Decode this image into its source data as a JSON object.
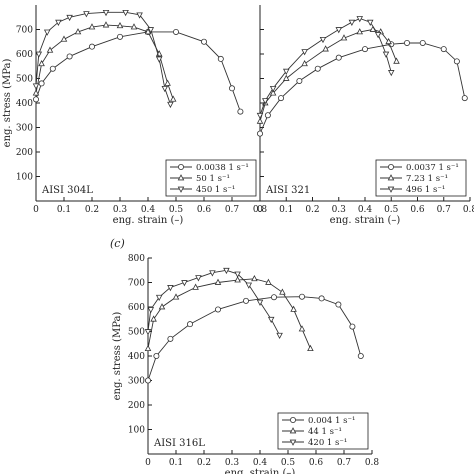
{
  "panel_label_c": "(c)",
  "chart_data": [
    {
      "type": "line",
      "annotation": "AISI 304L",
      "xlabel": "eng. strain (–)",
      "ylabel": "eng. stress (MPa)",
      "xlim": [
        0,
        0.8
      ],
      "ylim": [
        0,
        800
      ],
      "x_ticks": [
        "0",
        "0.1",
        "0.2",
        "0.3",
        "0.4",
        "0.5",
        "0.6",
        "0.7",
        "0.8"
      ],
      "y_ticks": [
        "100",
        "200",
        "300",
        "400",
        "500",
        "600",
        "700"
      ],
      "legend_position": "bottom-right",
      "series": [
        {
          "name": "0.0038 1 s⁻¹",
          "marker": "circle",
          "points": [
            [
              0,
              415
            ],
            [
              0.02,
              480
            ],
            [
              0.06,
              540
            ],
            [
              0.12,
              590
            ],
            [
              0.2,
              630
            ],
            [
              0.3,
              670
            ],
            [
              0.4,
              690
            ],
            [
              0.5,
              690
            ],
            [
              0.6,
              650
            ],
            [
              0.66,
              580
            ],
            [
              0.7,
              460
            ],
            [
              0.73,
              365
            ]
          ]
        },
        {
          "name": "50 1 s⁻¹",
          "marker": "triangle-up",
          "points": [
            [
              0,
              440
            ],
            [
              0.02,
              560
            ],
            [
              0.05,
              615
            ],
            [
              0.1,
              660
            ],
            [
              0.15,
              690
            ],
            [
              0.2,
              710
            ],
            [
              0.25,
              718
            ],
            [
              0.3,
              715
            ],
            [
              0.35,
              710
            ],
            [
              0.4,
              690
            ],
            [
              0.44,
              600
            ],
            [
              0.47,
              480
            ],
            [
              0.49,
              415
            ]
          ]
        },
        {
          "name": "450 1 s⁻¹",
          "marker": "triangle-down",
          "points": [
            [
              0,
              470
            ],
            [
              0.01,
              600
            ],
            [
              0.04,
              690
            ],
            [
              0.08,
              730
            ],
            [
              0.12,
              750
            ],
            [
              0.18,
              765
            ],
            [
              0.25,
              770
            ],
            [
              0.32,
              770
            ],
            [
              0.37,
              760
            ],
            [
              0.41,
              700
            ],
            [
              0.44,
              580
            ],
            [
              0.46,
              460
            ],
            [
              0.48,
              395
            ]
          ]
        }
      ]
    },
    {
      "type": "line",
      "annotation": "AISI 321",
      "xlabel": "eng. strain (–)",
      "ylabel": "",
      "xlim": [
        0,
        0.8
      ],
      "ylim": [
        0,
        800
      ],
      "x_ticks": [
        "0",
        "0.1",
        "0.2",
        "0.3",
        "0.4",
        "0.5",
        "0.6",
        "0.7",
        "0.8"
      ],
      "y_ticks": [],
      "legend_position": "bottom-right",
      "series": [
        {
          "name": "0.0037 1 s⁻¹",
          "marker": "circle",
          "points": [
            [
              0,
              275
            ],
            [
              0.03,
              350
            ],
            [
              0.08,
              420
            ],
            [
              0.15,
              490
            ],
            [
              0.22,
              540
            ],
            [
              0.3,
              585
            ],
            [
              0.4,
              620
            ],
            [
              0.5,
              640
            ],
            [
              0.56,
              645
            ],
            [
              0.62,
              645
            ],
            [
              0.7,
              620
            ],
            [
              0.75,
              570
            ],
            [
              0.78,
              420
            ]
          ]
        },
        {
          "name": "7.23 1 s⁻¹",
          "marker": "triangle-up",
          "points": [
            [
              0,
              325
            ],
            [
              0.02,
              400
            ],
            [
              0.05,
              440
            ],
            [
              0.1,
              500
            ],
            [
              0.17,
              560
            ],
            [
              0.25,
              620
            ],
            [
              0.32,
              665
            ],
            [
              0.38,
              690
            ],
            [
              0.43,
              700
            ],
            [
              0.46,
              690
            ],
            [
              0.49,
              650
            ],
            [
              0.52,
              570
            ]
          ]
        },
        {
          "name": "496 1 s⁻¹",
          "marker": "triangle-down",
          "points": [
            [
              0,
              350
            ],
            [
              0.02,
              410
            ],
            [
              0.05,
              460
            ],
            [
              0.1,
              530
            ],
            [
              0.17,
              610
            ],
            [
              0.24,
              660
            ],
            [
              0.3,
              700
            ],
            [
              0.35,
              730
            ],
            [
              0.38,
              745
            ],
            [
              0.42,
              730
            ],
            [
              0.45,
              680
            ],
            [
              0.48,
              600
            ],
            [
              0.5,
              525
            ]
          ]
        }
      ]
    },
    {
      "type": "line",
      "annotation": "AISI 316L",
      "xlabel": "eng. strain (–)",
      "ylabel": "eng. stress (MPa)",
      "xlim": [
        0,
        0.8
      ],
      "ylim": [
        0,
        800
      ],
      "x_ticks": [
        "0",
        "0.1",
        "0.2",
        "0.3",
        "0.4",
        "0.5",
        "0.6",
        "0.7",
        "0.8"
      ],
      "y_ticks": [
        "100",
        "200",
        "300",
        "400",
        "500",
        "600",
        "700",
        "800"
      ],
      "legend_position": "bottom-right",
      "series": [
        {
          "name": "0.004 1 s⁻¹",
          "marker": "circle",
          "points": [
            [
              0,
              300
            ],
            [
              0.03,
              400
            ],
            [
              0.08,
              470
            ],
            [
              0.15,
              530
            ],
            [
              0.25,
              590
            ],
            [
              0.35,
              625
            ],
            [
              0.45,
              640
            ],
            [
              0.55,
              642
            ],
            [
              0.62,
              635
            ],
            [
              0.68,
              610
            ],
            [
              0.73,
              520
            ],
            [
              0.76,
              400
            ]
          ]
        },
        {
          "name": "44 1 s⁻¹",
          "marker": "triangle-up",
          "points": [
            [
              0,
              430
            ],
            [
              0.02,
              550
            ],
            [
              0.05,
              600
            ],
            [
              0.1,
              640
            ],
            [
              0.17,
              680
            ],
            [
              0.25,
              700
            ],
            [
              0.32,
              710
            ],
            [
              0.38,
              715
            ],
            [
              0.43,
              700
            ],
            [
              0.48,
              660
            ],
            [
              0.52,
              590
            ],
            [
              0.55,
              510
            ],
            [
              0.58,
              430
            ]
          ]
        },
        {
          "name": "420 1 s⁻¹",
          "marker": "triangle-down",
          "points": [
            [
              0,
              500
            ],
            [
              0.01,
              590
            ],
            [
              0.04,
              640
            ],
            [
              0.08,
              680
            ],
            [
              0.13,
              700
            ],
            [
              0.18,
              720
            ],
            [
              0.23,
              740
            ],
            [
              0.28,
              750
            ],
            [
              0.32,
              735
            ],
            [
              0.36,
              690
            ],
            [
              0.4,
              620
            ],
            [
              0.44,
              550
            ],
            [
              0.47,
              485
            ]
          ]
        }
      ]
    }
  ]
}
